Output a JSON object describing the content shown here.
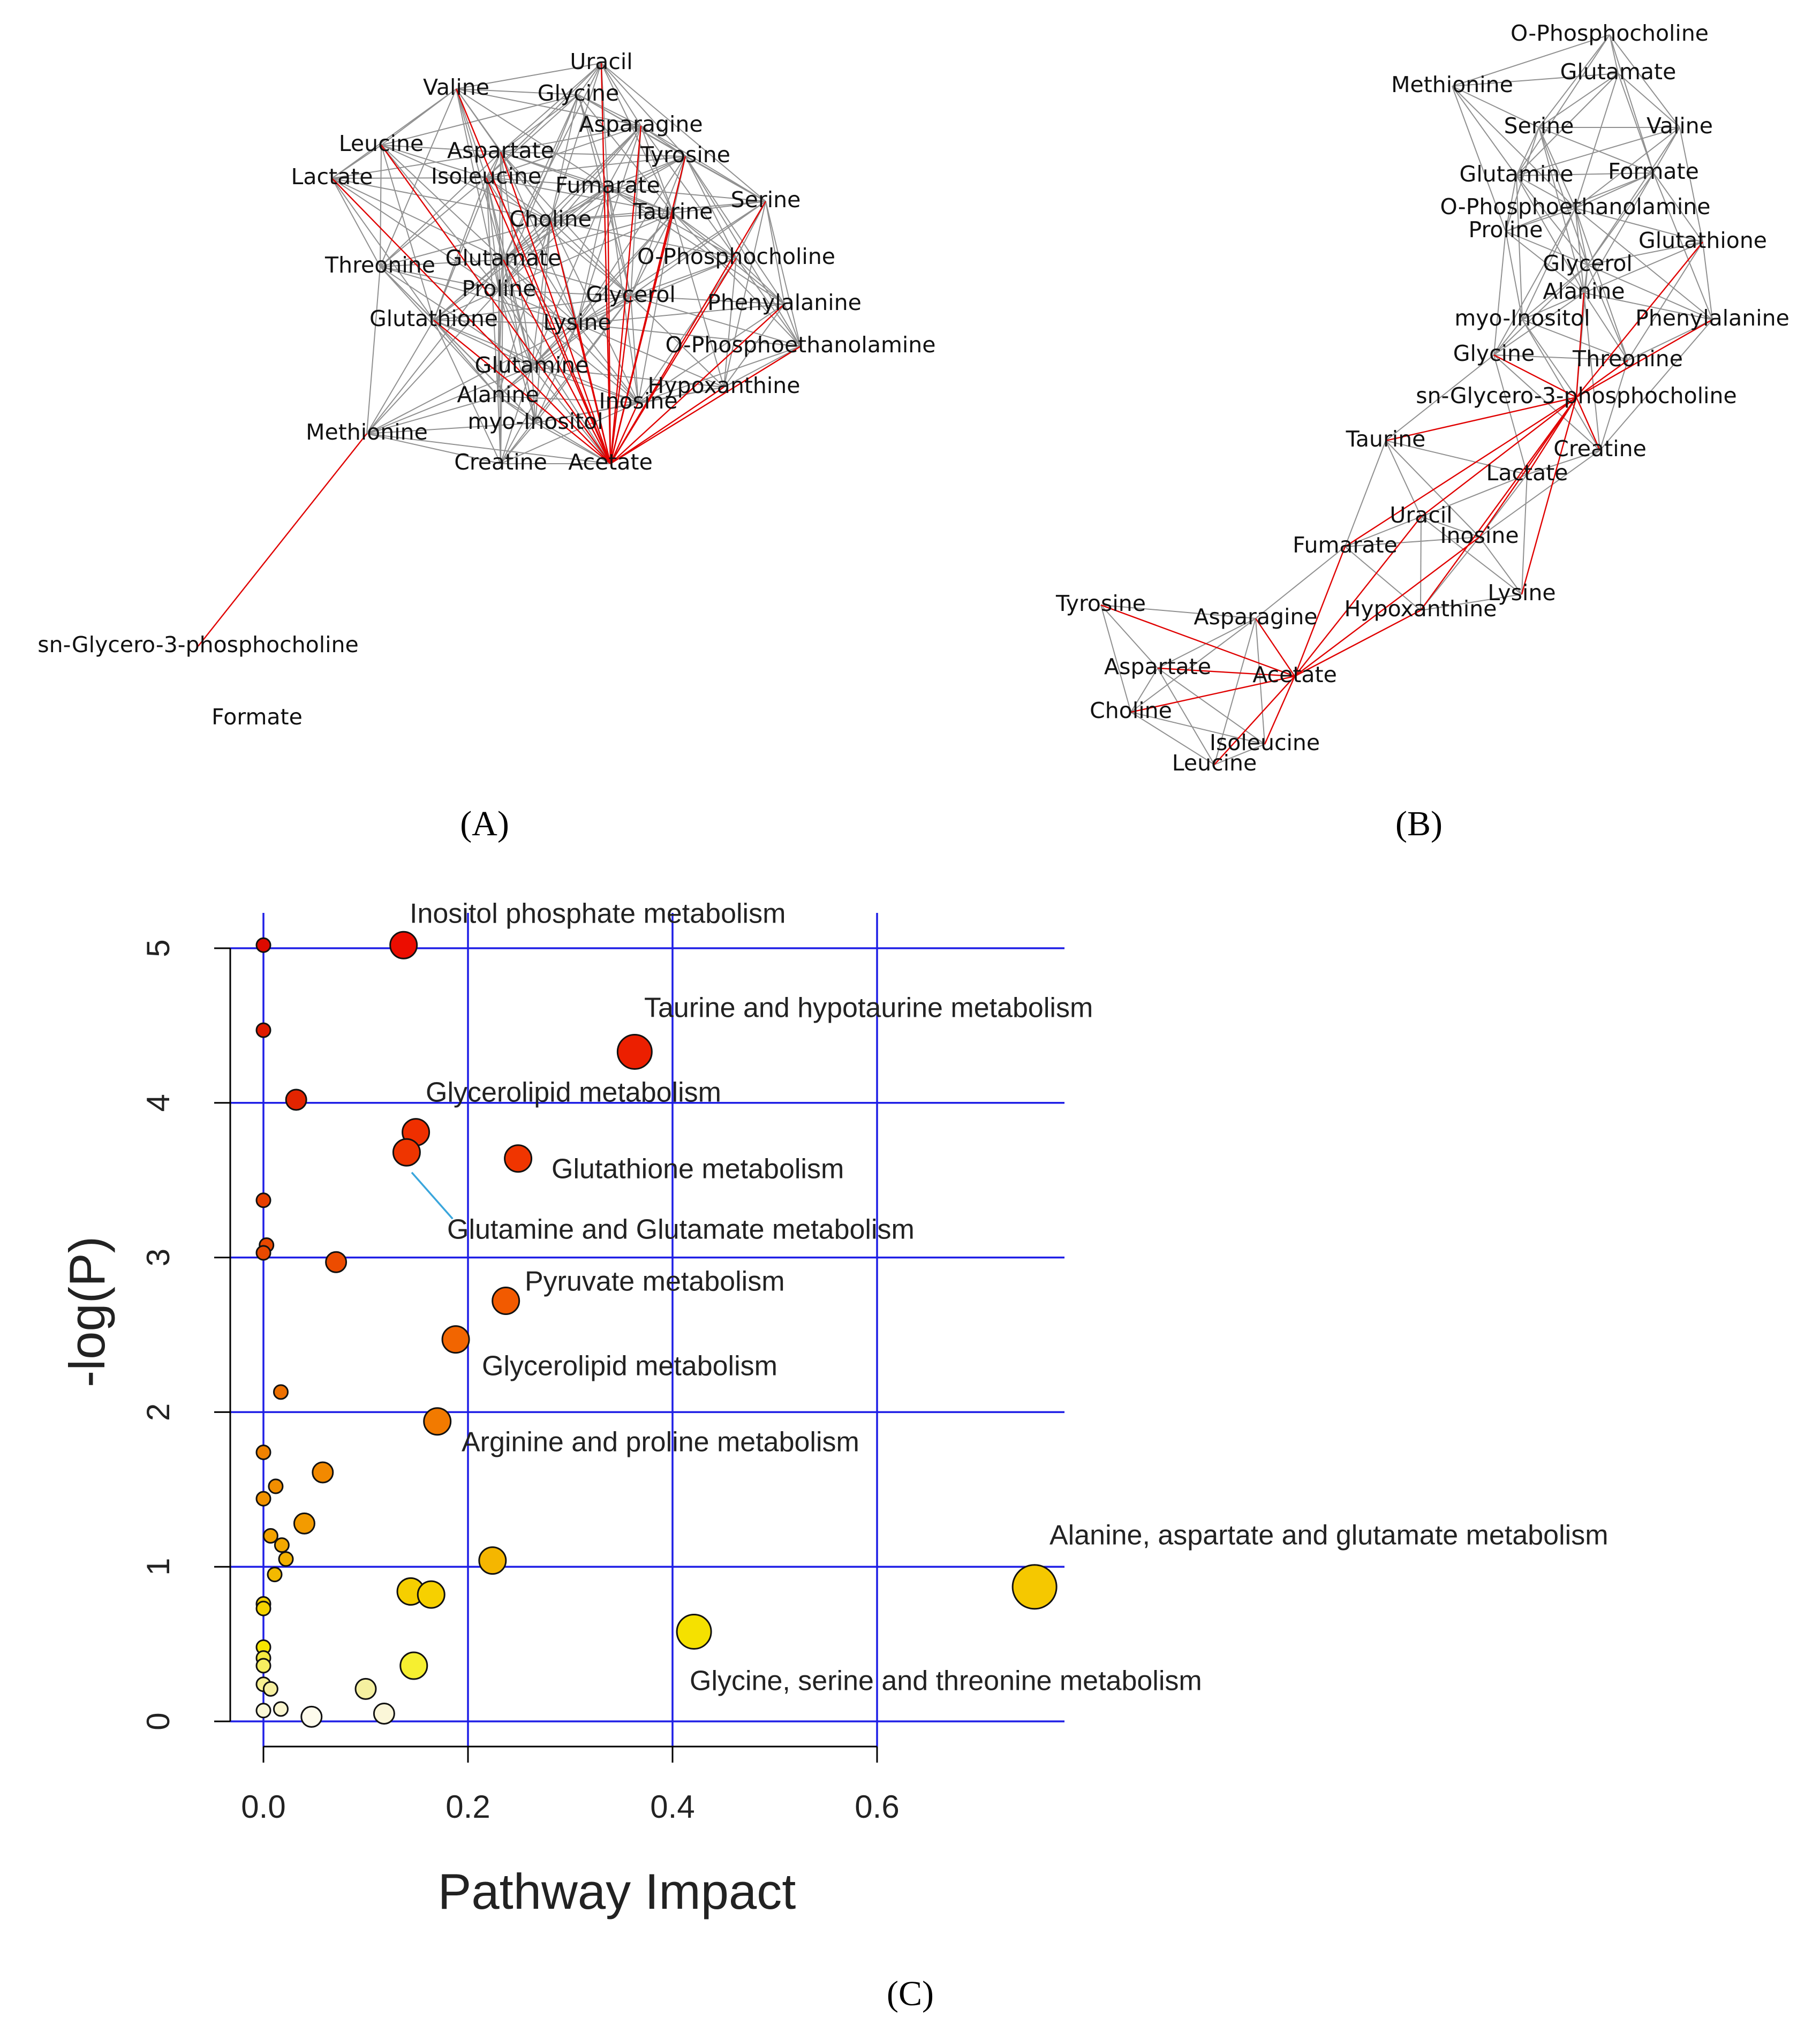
{
  "panel_labels": {
    "a": "(A)",
    "b": "(B)",
    "c": "(C)"
  },
  "network_a": {
    "nodes": [
      "Uracil",
      "Valine",
      "Glycine",
      "Asparagine",
      "Leucine",
      "Aspartate",
      "Tyrosine",
      "Lactate",
      "Isoleucine",
      "Fumarate",
      "Serine",
      "Taurine",
      "Choline",
      "Threonine",
      "Glutamate",
      "O-Phosphocholine",
      "Proline",
      "Glycerol",
      "Phenylalanine",
      "Glutathione",
      "Lysine",
      "O-Phosphoethanolamine",
      "Glutamine",
      "Hypoxanthine",
      "Alanine",
      "Inosine",
      "myo-Inositol",
      "Methionine",
      "Creatine",
      "Acetate",
      "sn-Glycero-3-phosphocholine",
      "Formate"
    ]
  },
  "network_b": {
    "nodes": [
      "O-Phosphocholine",
      "Glutamate",
      "Methionine",
      "Serine",
      "Valine",
      "Glutamine",
      "Formate",
      "O-Phosphoethanolamine",
      "Proline",
      "Glutathione",
      "Glycerol",
      "Alanine",
      "myo-Inositol",
      "Phenylalanine",
      "Glycine",
      "Threonine",
      "sn-Glycero-3-phosphocholine",
      "Taurine",
      "Creatine",
      "Lactate",
      "Uracil",
      "Inosine",
      "Fumarate",
      "Lysine",
      "Tyrosine",
      "Asparagine",
      "Hypoxanthine",
      "Aspartate",
      "Acetate",
      "Choline",
      "Isoleucine",
      "Leucine"
    ]
  },
  "chart_data": {
    "type": "scatter",
    "xlabel": "Pathway Impact",
    "ylabel": "-log(P)",
    "xlim": [
      -0.03,
      0.78
    ],
    "ylim": [
      -0.18,
      5.25
    ],
    "x_ticks": [
      "0.0",
      "0.2",
      "0.4",
      "0.6"
    ],
    "y_ticks": [
      "0",
      "1",
      "2",
      "3",
      "4",
      "5"
    ],
    "gridlines_x": [
      0.0,
      0.2,
      0.4,
      0.6
    ],
    "gridlines_y": [
      0,
      1,
      2,
      3,
      4,
      5
    ],
    "points": [
      {
        "x": 0.137,
        "y": 5.02,
        "size": 2,
        "color": "#ec0d00"
      },
      {
        "x": 0.363,
        "y": 4.33,
        "size": 3,
        "color": "#ec1f00"
      },
      {
        "x": 0.149,
        "y": 3.81,
        "size": 2,
        "color": "#ef2f00"
      },
      {
        "x": 0.14,
        "y": 3.68,
        "size": 2,
        "color": "#ef3500"
      },
      {
        "x": 0.249,
        "y": 3.64,
        "size": 2,
        "color": "#f03500"
      },
      {
        "x": 0.237,
        "y": 2.72,
        "size": 2,
        "color": "#f25a00"
      },
      {
        "x": 0.188,
        "y": 2.47,
        "size": 2,
        "color": "#f26500"
      },
      {
        "x": 0.17,
        "y": 1.94,
        "size": 2,
        "color": "#f27a00"
      },
      {
        "x": 0.754,
        "y": 0.87,
        "size": 4,
        "color": "#f5c800"
      },
      {
        "x": 0.421,
        "y": 0.58,
        "size": 3,
        "color": "#f5e100"
      },
      {
        "x": 0.224,
        "y": 1.04,
        "size": 2,
        "color": "#f5b600"
      },
      {
        "x": 0.144,
        "y": 0.84,
        "size": 2,
        "color": "#f6cf00"
      },
      {
        "x": 0.164,
        "y": 0.82,
        "size": 2,
        "color": "#f6d000"
      },
      {
        "x": 0.147,
        "y": 0.36,
        "size": 2,
        "color": "#f6ef30"
      },
      {
        "x": 0.1,
        "y": 0.21,
        "size": 1,
        "color": "#f5f0a0"
      },
      {
        "x": 0.118,
        "y": 0.05,
        "size": 1,
        "color": "#fbf6d8"
      },
      {
        "x": 0.047,
        "y": 0.03,
        "size": 1,
        "color": "#fdfbec"
      },
      {
        "x": 0.0,
        "y": 5.02,
        "size": 0,
        "color": "#dd0a00"
      },
      {
        "x": 0.0,
        "y": 4.47,
        "size": 0,
        "color": "#e01a00"
      },
      {
        "x": 0.032,
        "y": 4.02,
        "size": 1,
        "color": "#e32400"
      },
      {
        "x": 0.0,
        "y": 3.37,
        "size": 0,
        "color": "#e83f00"
      },
      {
        "x": 0.003,
        "y": 3.08,
        "size": 0,
        "color": "#e84800"
      },
      {
        "x": 0.0,
        "y": 3.03,
        "size": 0,
        "color": "#e84900"
      },
      {
        "x": 0.071,
        "y": 2.97,
        "size": 1,
        "color": "#ec4c00"
      },
      {
        "x": 0.017,
        "y": 2.13,
        "size": 0,
        "color": "#ee7000"
      },
      {
        "x": 0.0,
        "y": 1.74,
        "size": 0,
        "color": "#f08200"
      },
      {
        "x": 0.058,
        "y": 1.61,
        "size": 1,
        "color": "#f28900"
      },
      {
        "x": 0.012,
        "y": 1.52,
        "size": 0,
        "color": "#f28e00"
      },
      {
        "x": 0.0,
        "y": 1.44,
        "size": 0,
        "color": "#f29200"
      },
      {
        "x": 0.04,
        "y": 1.28,
        "size": 1,
        "color": "#f39b00"
      },
      {
        "x": 0.007,
        "y": 1.2,
        "size": 0,
        "color": "#f3a200"
      },
      {
        "x": 0.018,
        "y": 1.14,
        "size": 0,
        "color": "#f3a800"
      },
      {
        "x": 0.022,
        "y": 1.05,
        "size": 0,
        "color": "#f3b000"
      },
      {
        "x": 0.011,
        "y": 0.95,
        "size": 0,
        "color": "#f3b900"
      },
      {
        "x": 0.0,
        "y": 0.76,
        "size": 0,
        "color": "#f5d000"
      },
      {
        "x": 0.0,
        "y": 0.73,
        "size": 0,
        "color": "#f5d300"
      },
      {
        "x": 0.0,
        "y": 0.48,
        "size": 0,
        "color": "#f6e600"
      },
      {
        "x": 0.0,
        "y": 0.41,
        "size": 0,
        "color": "#f6ea40"
      },
      {
        "x": 0.0,
        "y": 0.36,
        "size": 0,
        "color": "#f6ee60"
      },
      {
        "x": 0.0,
        "y": 0.24,
        "size": 0,
        "color": "#f7f090"
      },
      {
        "x": 0.007,
        "y": 0.21,
        "size": 0,
        "color": "#f7f0a0"
      },
      {
        "x": 0.017,
        "y": 0.08,
        "size": 0,
        "color": "#fbf6d0"
      },
      {
        "x": 0.0,
        "y": 0.07,
        "size": 0,
        "color": "#fbf7d8"
      }
    ],
    "annotations": [
      "Inositol phosphate metabolism",
      "Taurine and hypotaurine metabolism",
      "Glycerolipid metabolism",
      "Glutathione metabolism",
      "Glutamine and Glutamate metabolism",
      "Pyruvate metabolism",
      "Glycerolipid metabolism",
      "Arginine and proline metabolism",
      "Alanine, aspartate and glutamate metabolism",
      "Glycine, serine and threonine metabolism"
    ]
  },
  "colors": {
    "grid": "#1e1ee6",
    "edge_gray": "#909090",
    "edge_red": "#e00000",
    "leader": "#3aa6dc"
  }
}
